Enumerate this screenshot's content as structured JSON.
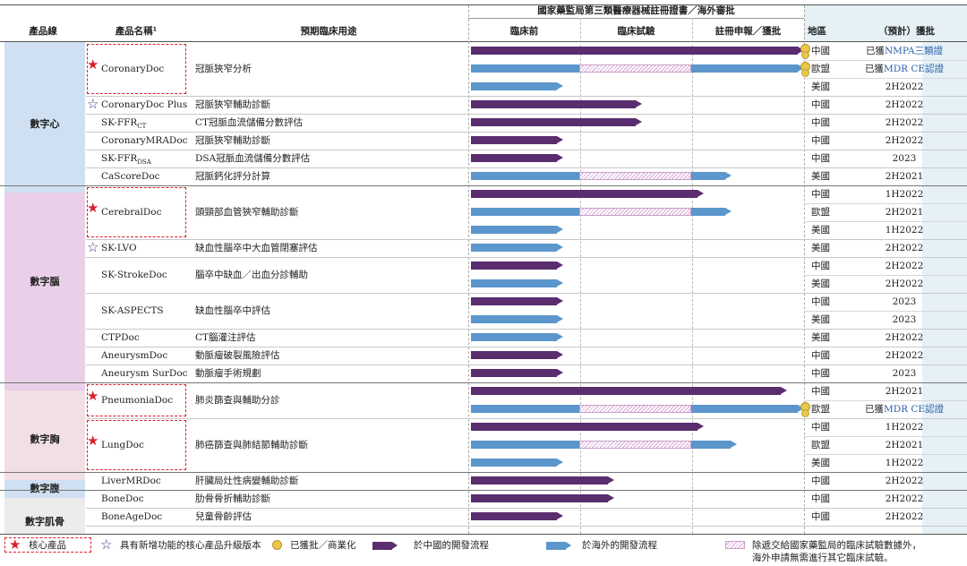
{
  "chart_data": {
    "type": "table",
    "colors": {
      "china": "#5a2d6e",
      "overseas": "#5b96cc",
      "hatch": "#d7a8d7",
      "star": "#d9202a",
      "star_outline": "#4a2f7a",
      "medal": "#e8c84a",
      "highlight": "#2b5fa8"
    },
    "header": {
      "product_line": "產品線",
      "product_name": "產品名稱¹",
      "intended_use": "預期臨床用途",
      "stage_group": "國家藥監局第三類醫療器械註冊證書／海外審批",
      "stages": [
        "臨床前",
        "臨床試驗",
        "註冊申報／獲批"
      ],
      "region": "地區",
      "approval": "（預計）獲批"
    },
    "categories": [
      "數字心",
      "數字腦",
      "數字胸",
      "數字腹",
      "數字肌骨"
    ],
    "products": [
      {
        "name": "CoronaryDoc",
        "sub": "",
        "use": "冠脈狹窄分析",
        "mark": "core",
        "category": 0
      },
      {
        "name": "CoronaryDoc Plus",
        "sub": "",
        "use": "冠脈狹窄輔助診斷",
        "mark": "upgrade",
        "category": 0
      },
      {
        "name": "SK-FFR",
        "sub": "CT",
        "use": "CT冠脈血流儲備分數評估",
        "mark": "",
        "category": 0
      },
      {
        "name": "CoronaryMRADoc",
        "sub": "",
        "use": "冠脈狹窄輔助診斷",
        "mark": "",
        "category": 0
      },
      {
        "name": "SK-FFR",
        "sub": "DSA",
        "use": "DSA冠脈血流儲備分數評估",
        "mark": "",
        "category": 0
      },
      {
        "name": "CaScoreDoc",
        "sub": "",
        "use": "冠脈鈣化評分計算",
        "mark": "",
        "category": 0
      },
      {
        "name": "CerebralDoc",
        "sub": "",
        "use": "頭頸部血管狹窄輔助診斷",
        "mark": "core",
        "category": 1
      },
      {
        "name": "SK-LVO",
        "sub": "",
        "use": "缺血性腦卒中大血管閉塞評估",
        "mark": "upgrade",
        "category": 1
      },
      {
        "name": "SK-StrokeDoc",
        "sub": "",
        "use": "腦卒中缺血／出血分診輔助",
        "mark": "",
        "category": 1
      },
      {
        "name": "SK-ASPECTS",
        "sub": "",
        "use": "缺血性腦卒中評估",
        "mark": "",
        "category": 1
      },
      {
        "name": "CTPDoc",
        "sub": "",
        "use": "CT腦灌注評估",
        "mark": "",
        "category": 1
      },
      {
        "name": "AneurysmDoc",
        "sub": "",
        "use": "動脈瘤破裂風險評估",
        "mark": "",
        "category": 1
      },
      {
        "name": "Aneurysm SurDoc",
        "sub": "",
        "use": "動脈瘤手術規劃",
        "mark": "",
        "category": 1
      },
      {
        "name": "PneumoniaDoc",
        "sub": "",
        "use": "肺炎篩查與輔助分診",
        "mark": "core",
        "category": 2
      },
      {
        "name": "LungDoc",
        "sub": "",
        "use": "肺癌篩查與肺結節輔助診斷",
        "mark": "core",
        "category": 2
      },
      {
        "name": "LiverMRDoc",
        "sub": "",
        "use": "肝臟局灶性病變輔助診斷",
        "mark": "",
        "category": 3
      },
      {
        "name": "BoneDoc",
        "sub": "",
        "use": "肋骨骨折輔助診斷",
        "mark": "",
        "category": 4
      },
      {
        "name": "BoneAgeDoc",
        "sub": "",
        "use": "兒童骨齡評估",
        "mark": "",
        "category": 4
      }
    ],
    "rows": [
      {
        "product": 0,
        "region": "中國",
        "approval": "已獲NMPA三類證",
        "highlight": true,
        "type": "china",
        "progress": 3.0,
        "hatch": null,
        "medal": true
      },
      {
        "product": 0,
        "region": "歐盟",
        "approval": "已獲MDR CE認證",
        "highlight": true,
        "type": "overseas",
        "progress": 3.0,
        "hatch": [
          1,
          2
        ],
        "medal": true
      },
      {
        "product": 0,
        "region": "美國",
        "approval": "2H2022",
        "type": "overseas",
        "progress": 0.85,
        "hatch": null
      },
      {
        "product": 1,
        "region": "中國",
        "approval": "2H2022",
        "type": "china",
        "progress": 1.55,
        "hatch": null
      },
      {
        "product": 2,
        "region": "中國",
        "approval": "2H2022",
        "type": "china",
        "progress": 1.55,
        "hatch": null
      },
      {
        "product": 3,
        "region": "中國",
        "approval": "2H2022",
        "type": "china",
        "progress": 0.85,
        "hatch": null
      },
      {
        "product": 4,
        "region": "中國",
        "approval": "2023",
        "type": "china",
        "progress": 0.85,
        "hatch": null
      },
      {
        "product": 5,
        "region": "美國",
        "approval": "2H2021",
        "type": "overseas",
        "progress": 2.35,
        "hatch": [
          1,
          2
        ]
      },
      {
        "product": 6,
        "region": "中國",
        "approval": "1H2022",
        "type": "china",
        "progress": 2.1,
        "hatch": null
      },
      {
        "product": 6,
        "region": "歐盟",
        "approval": "2H2021",
        "type": "overseas",
        "progress": 2.35,
        "hatch": [
          1,
          2
        ]
      },
      {
        "product": 6,
        "region": "美國",
        "approval": "1H2022",
        "type": "overseas",
        "progress": 0.85,
        "hatch": null
      },
      {
        "product": 7,
        "region": "美國",
        "approval": "2H2022",
        "type": "overseas",
        "progress": 0.85,
        "hatch": null
      },
      {
        "product": 8,
        "region": "中國",
        "approval": "2H2022",
        "type": "china",
        "progress": 0.85,
        "hatch": null
      },
      {
        "product": 8,
        "region": "美國",
        "approval": "2H2022",
        "type": "overseas",
        "progress": 0.85,
        "hatch": null
      },
      {
        "product": 9,
        "region": "中國",
        "approval": "2023",
        "type": "china",
        "progress": 0.85,
        "hatch": null
      },
      {
        "product": 9,
        "region": "美國",
        "approval": "2023",
        "type": "overseas",
        "progress": 0.85,
        "hatch": null
      },
      {
        "product": 10,
        "region": "美國",
        "approval": "2H2022",
        "type": "overseas",
        "progress": 0.85,
        "hatch": null
      },
      {
        "product": 11,
        "region": "中國",
        "approval": "2H2022",
        "type": "china",
        "progress": 0.85,
        "hatch": null
      },
      {
        "product": 12,
        "region": "中國",
        "approval": "2023",
        "type": "china",
        "progress": 0.85,
        "hatch": null
      },
      {
        "product": 13,
        "region": "中國",
        "approval": "2H2021",
        "type": "china",
        "progress": 2.85,
        "hatch": null
      },
      {
        "product": 13,
        "region": "歐盟",
        "approval": "已獲MDR CE認證",
        "highlight": true,
        "type": "overseas",
        "progress": 3.0,
        "hatch": [
          1,
          2
        ],
        "medal": true
      },
      {
        "product": 14,
        "region": "中國",
        "approval": "1H2022",
        "type": "china",
        "progress": 2.1,
        "hatch": null
      },
      {
        "product": 14,
        "region": "歐盟",
        "approval": "2H2021",
        "type": "overseas",
        "progress": 2.4,
        "hatch": [
          1,
          2
        ]
      },
      {
        "product": 14,
        "region": "美國",
        "approval": "1H2022",
        "type": "overseas",
        "progress": 0.85,
        "hatch": null
      },
      {
        "product": 15,
        "region": "中國",
        "approval": "2H2022",
        "type": "china",
        "progress": 1.3,
        "hatch": null
      },
      {
        "product": 16,
        "region": "中國",
        "approval": "2H2022",
        "type": "china",
        "progress": 1.3,
        "hatch": null
      },
      {
        "product": 17,
        "region": "中國",
        "approval": "2H2022",
        "type": "china",
        "progress": 0.85,
        "hatch": null
      }
    ],
    "legend": {
      "core": "核心產品",
      "upgrade": "具有新增功能的核心產品升級版本",
      "approved": "已獲批／商業化",
      "china_dev": "於中國的開發流程",
      "overseas_dev": "於海外的開發流程",
      "hatch_note_1": "除遞交給國家藥監局的臨床試驗數據外，",
      "hatch_note_2": "海外申請無需進行其它臨床試驗。"
    }
  }
}
